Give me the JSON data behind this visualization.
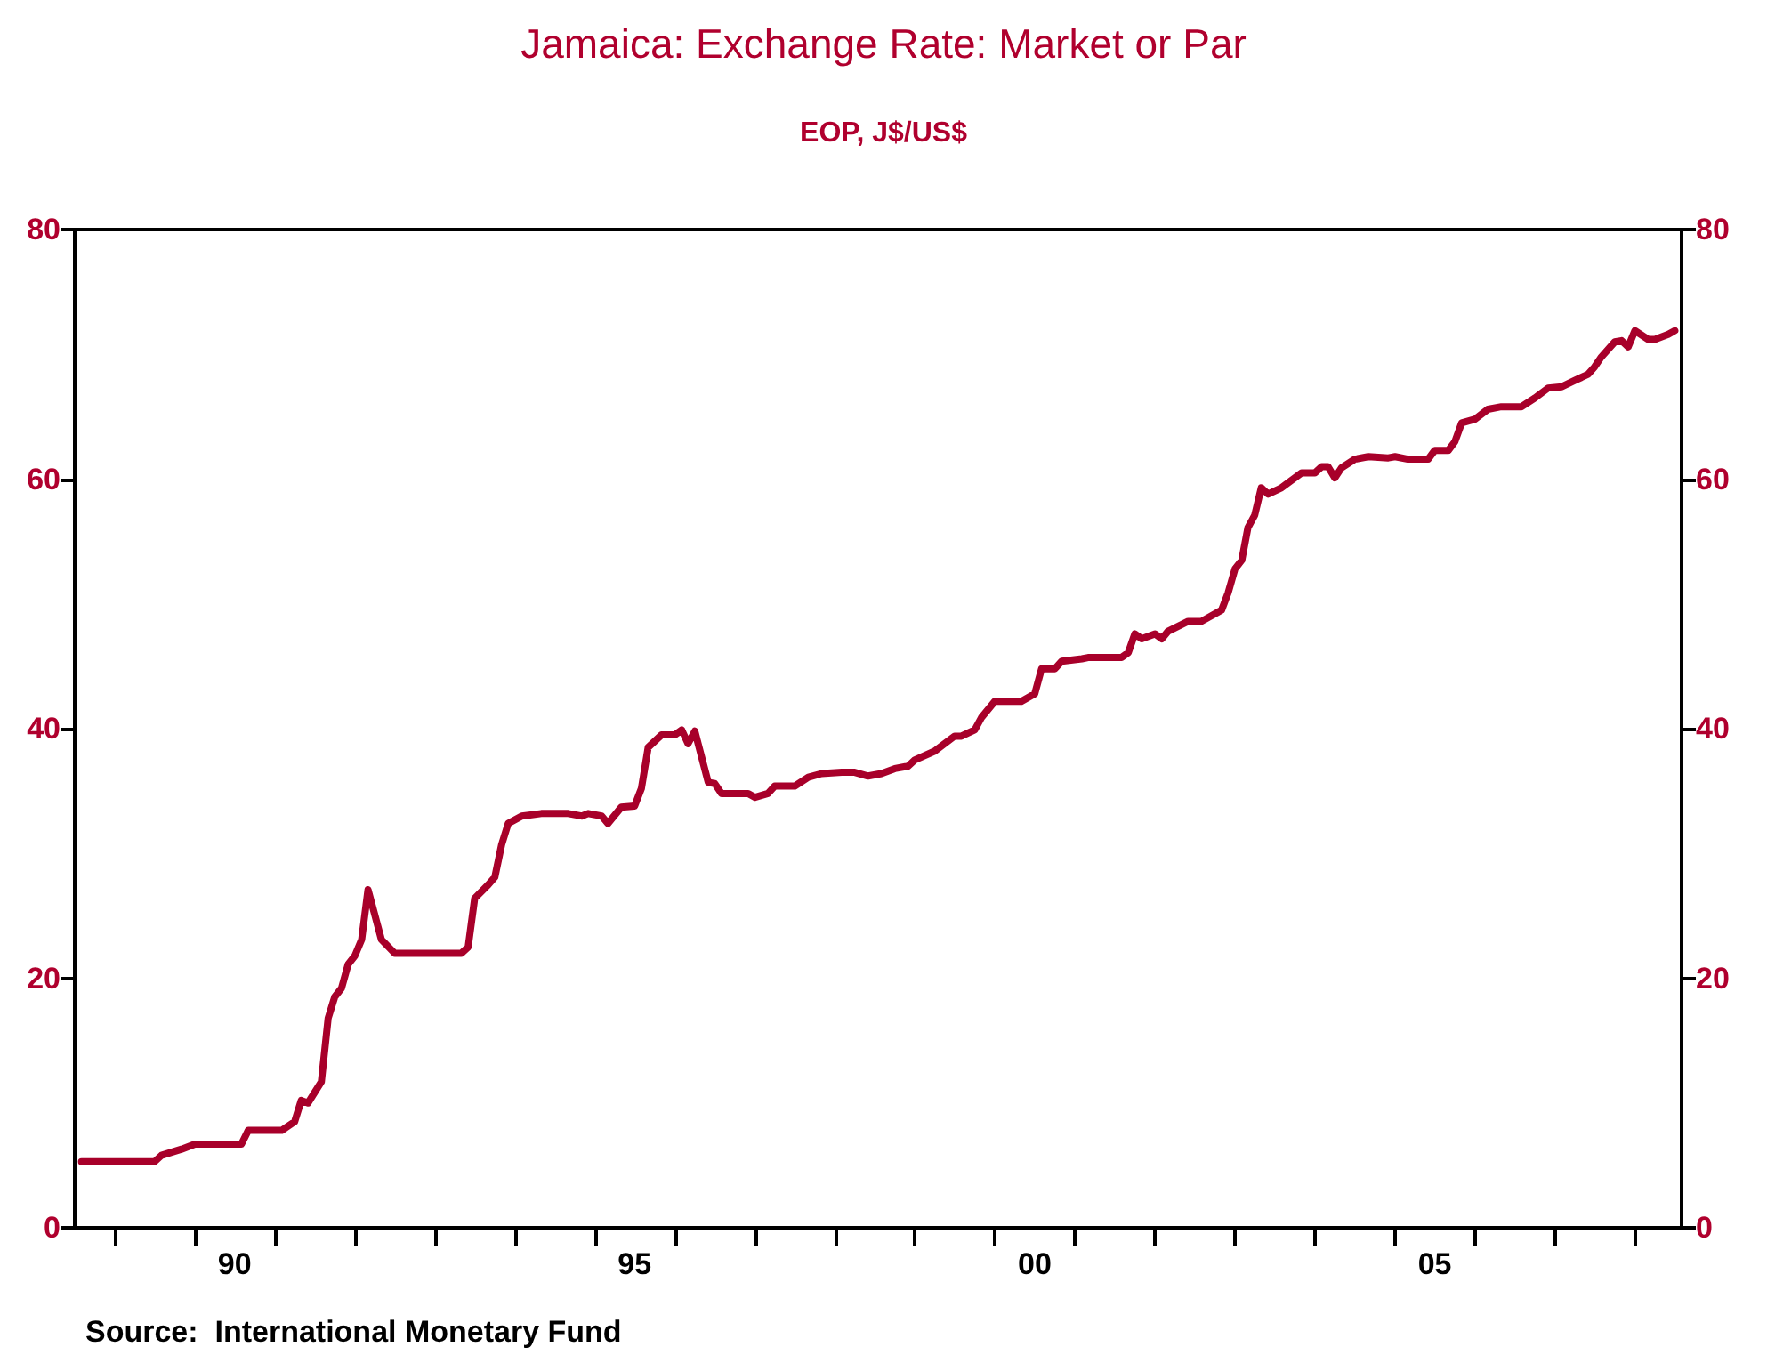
{
  "chart_data": {
    "type": "line",
    "title": "Jamaica: Exchange Rate: Market or Par",
    "subtitle": "EOP, J$/US$",
    "annotations": [
      "Source:  International Monetary Fund"
    ],
    "x": [
      "1988-08",
      "1989-07",
      "1989-08",
      "1989-11",
      "1990-01",
      "1990-08",
      "1990-09",
      "1991-02",
      "1991-04",
      "1991-05",
      "1991-06",
      "1991-08",
      "1991-09",
      "1991-10",
      "1991-11",
      "1991-12",
      "1992-01",
      "1992-02",
      "1992-03",
      "1992-05",
      "1992-07",
      "1993-05",
      "1993-06",
      "1993-07",
      "1993-09",
      "1993-10",
      "1993-11",
      "1993-12",
      "1994-02",
      "1994-05",
      "1994-09",
      "1994-11",
      "1994-12",
      "1995-02",
      "1995-03",
      "1995-05",
      "1995-07",
      "1995-08",
      "1995-09",
      "1995-11",
      "1996-01",
      "1996-02",
      "1996-03",
      "1996-04",
      "1996-06",
      "1996-07",
      "1996-08",
      "1996-12",
      "1997-01",
      "1997-03",
      "1997-04",
      "1997-07",
      "1997-09",
      "1997-11",
      "1998-02",
      "1998-04",
      "1998-06",
      "1998-08",
      "1998-10",
      "1998-12",
      "1999-01",
      "1999-04",
      "1999-07",
      "1999-08",
      "1999-10",
      "1999-11",
      "2000-01",
      "2000-05",
      "2000-07",
      "2000-08",
      "2000-10",
      "2000-11",
      "2001-02",
      "2001-03",
      "2001-08",
      "2001-09",
      "2001-10",
      "2001-11",
      "2002-01",
      "2002-02",
      "2002-03",
      "2002-06",
      "2002-08",
      "2002-10",
      "2002-11",
      "2002-12",
      "2003-01",
      "2003-02",
      "2003-03",
      "2003-04",
      "2003-05",
      "2003-06",
      "2003-08",
      "2003-11",
      "2004-01",
      "2004-02",
      "2004-03",
      "2004-04",
      "2004-05",
      "2004-07",
      "2004-09",
      "2004-12",
      "2005-01",
      "2005-03",
      "2005-06",
      "2005-07",
      "2005-09",
      "2005-10",
      "2005-11",
      "2006-01",
      "2006-03",
      "2006-05",
      "2006-08",
      "2006-10",
      "2006-12",
      "2007-02",
      "2007-04",
      "2007-06",
      "2007-07",
      "2007-08",
      "2007-10",
      "2007-11",
      "2007-12",
      "2008-01",
      "2008-03",
      "2008-04",
      "2008-06",
      "2008-07"
    ],
    "series": [
      {
        "color": "#a8002a",
        "values": [
          5.3,
          5.3,
          5.8,
          6.3,
          6.7,
          6.7,
          7.8,
          7.8,
          8.5,
          10.2,
          10.0,
          11.7,
          16.8,
          18.5,
          19.2,
          21.1,
          21.8,
          23.1,
          27.1,
          23.1,
          22.0,
          22.0,
          22.5,
          26.4,
          27.5,
          28.1,
          30.7,
          32.4,
          33.0,
          33.2,
          33.2,
          33.0,
          33.2,
          33.0,
          32.4,
          33.7,
          33.8,
          35.2,
          38.5,
          39.5,
          39.5,
          39.9,
          38.8,
          39.8,
          35.7,
          35.6,
          34.8,
          34.8,
          34.5,
          34.8,
          35.4,
          35.4,
          36.1,
          36.4,
          36.5,
          36.5,
          36.2,
          36.4,
          36.8,
          37.0,
          37.5,
          38.2,
          39.4,
          39.4,
          39.9,
          40.9,
          42.2,
          42.2,
          42.8,
          44.8,
          44.8,
          45.4,
          45.6,
          45.7,
          45.7,
          46.1,
          47.6,
          47.2,
          47.6,
          47.2,
          47.8,
          48.6,
          48.6,
          49.2,
          49.5,
          50.9,
          52.8,
          53.5,
          56.1,
          57.1,
          59.3,
          58.8,
          59.3,
          60.5,
          60.5,
          61.0,
          61.0,
          60.1,
          60.9,
          61.6,
          61.8,
          61.7,
          61.8,
          61.6,
          61.6,
          62.3,
          62.3,
          63.0,
          64.5,
          64.8,
          65.6,
          65.8,
          65.8,
          66.5,
          67.3,
          67.4,
          67.9,
          68.4,
          69.0,
          69.8,
          71.0,
          71.1,
          70.6,
          71.9,
          71.2,
          71.2,
          71.6,
          71.9
        ]
      }
    ],
    "xlim": [
      "1988-07",
      "2008-08"
    ],
    "xticks": [
      {
        "value": "1989-01",
        "label": null
      },
      {
        "value": "1990-01",
        "label": null
      },
      {
        "value": "1990-07",
        "label": "90"
      },
      {
        "value": "1991-01",
        "label": null
      },
      {
        "value": "1992-01",
        "label": null
      },
      {
        "value": "1993-01",
        "label": null
      },
      {
        "value": "1994-01",
        "label": null
      },
      {
        "value": "1995-01",
        "label": null
      },
      {
        "value": "1995-07",
        "label": "95"
      },
      {
        "value": "1996-01",
        "label": null
      },
      {
        "value": "1997-01",
        "label": null
      },
      {
        "value": "1998-01",
        "label": null
      },
      {
        "value": "1999-01",
        "label": null
      },
      {
        "value": "2000-01",
        "label": null
      },
      {
        "value": "2000-07",
        "label": "00"
      },
      {
        "value": "2001-01",
        "label": null
      },
      {
        "value": "2002-01",
        "label": null
      },
      {
        "value": "2003-01",
        "label": null
      },
      {
        "value": "2004-01",
        "label": null
      },
      {
        "value": "2005-01",
        "label": null
      },
      {
        "value": "2005-07",
        "label": "05"
      },
      {
        "value": "2006-01",
        "label": null
      },
      {
        "value": "2007-01",
        "label": null
      },
      {
        "value": "2008-01",
        "label": null
      }
    ],
    "ylim": [
      0,
      80
    ],
    "yticks": [
      0,
      20,
      40,
      60,
      80
    ],
    "y2lim": [
      0,
      80
    ],
    "y2ticks": [
      0,
      20,
      40,
      60,
      80
    ],
    "grid": false,
    "marker": "none",
    "line_style": "solid"
  }
}
